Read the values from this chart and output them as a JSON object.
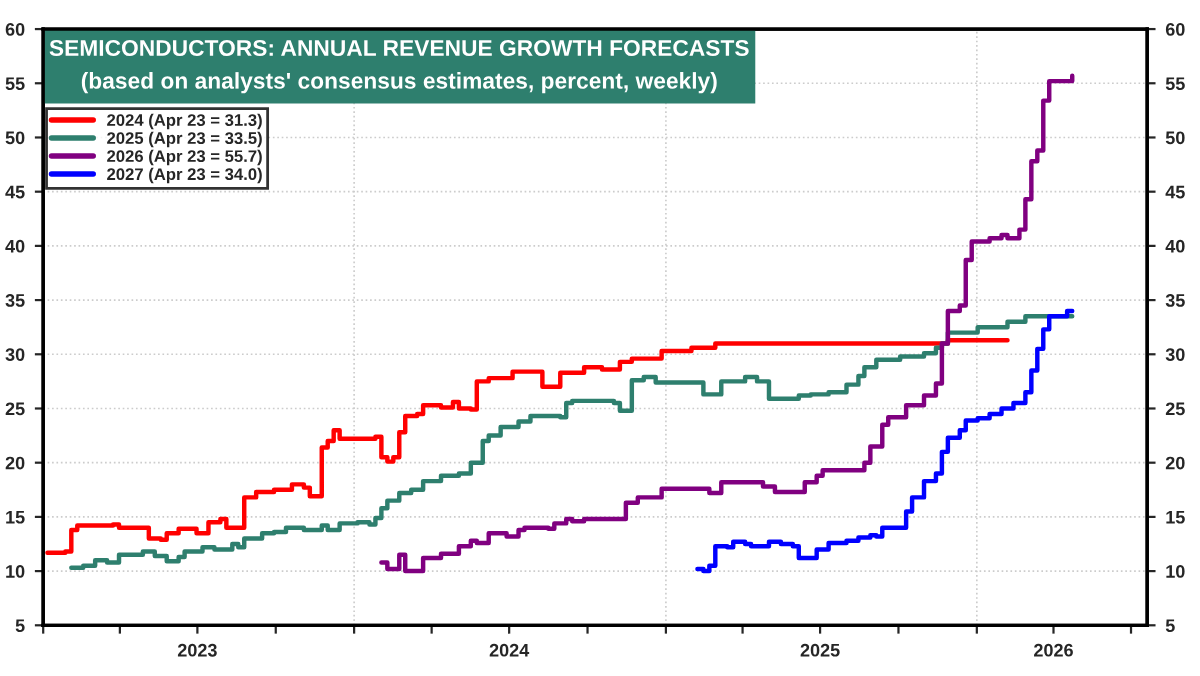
{
  "chart_data": {
    "type": "step",
    "title": "SEMICONDUCTORS: ANNUAL REVENUE GROWTH FORECASTS",
    "subtitle": "(based on analysts' consensus estimates, percent, weekly)",
    "xlim": [
      "2023-01-01",
      "2026-07-20"
    ],
    "xticks": [
      {
        "value": "2023-01-01",
        "label": null
      },
      {
        "value": "2023-04-01",
        "label": null
      },
      {
        "value": "2023-07-01",
        "label": "2023"
      },
      {
        "value": "2023-10-01",
        "label": null
      },
      {
        "value": "2024-01-01",
        "label": null
      },
      {
        "value": "2024-04-01",
        "label": null
      },
      {
        "value": "2024-07-01",
        "label": "2024"
      },
      {
        "value": "2024-10-01",
        "label": null
      },
      {
        "value": "2025-01-01",
        "label": null
      },
      {
        "value": "2025-04-01",
        "label": null
      },
      {
        "value": "2025-07-01",
        "label": "2025"
      },
      {
        "value": "2025-10-01",
        "label": null
      },
      {
        "value": "2026-01-01",
        "label": null
      },
      {
        "value": "2026-04-01",
        "label": "2026"
      },
      {
        "value": "2026-07-01",
        "label": null
      }
    ],
    "ylim": [
      5,
      60
    ],
    "yticks": [
      5,
      10,
      15,
      20,
      25,
      30,
      35,
      40,
      45,
      50,
      55,
      60
    ],
    "y2lim": [
      5,
      60
    ],
    "y2ticks": [
      5,
      10,
      15,
      20,
      25,
      30,
      35,
      40,
      45,
      50,
      55,
      60
    ],
    "grid": true,
    "legend": "top left",
    "line_style": "solid",
    "marker": "none",
    "series": [
      {
        "name": "2024 (Apr 23 = 31.3)",
        "color": "#ff0000",
        "x": [
          "2023-01-06",
          "2023-01-27",
          "2023-02-03",
          "2023-02-10",
          "2023-03-24",
          "2023-03-31",
          "2023-04-28",
          "2023-05-05",
          "2023-05-19",
          "2023-05-26",
          "2023-06-09",
          "2023-06-23",
          "2023-06-30",
          "2023-07-07",
          "2023-07-14",
          "2023-07-28",
          "2023-08-04",
          "2023-08-18",
          "2023-08-25",
          "2023-09-08",
          "2023-09-29",
          "2023-10-20",
          "2023-11-03",
          "2023-11-10",
          "2023-11-17",
          "2023-11-24",
          "2023-12-01",
          "2023-12-08",
          "2023-12-15",
          "2024-01-26",
          "2024-02-02",
          "2024-02-09",
          "2024-02-16",
          "2024-02-23",
          "2024-03-01",
          "2024-03-15",
          "2024-03-22",
          "2024-04-12",
          "2024-04-26",
          "2024-05-03",
          "2024-05-17",
          "2024-05-24",
          "2024-06-07",
          "2024-07-05",
          "2024-08-02",
          "2024-08-09",
          "2024-08-23",
          "2024-08-30",
          "2024-09-27",
          "2024-10-18",
          "2024-11-08",
          "2024-11-22",
          "2024-12-27",
          "2025-01-31",
          "2025-02-28",
          "2025-11-21",
          "2025-11-28",
          "2026-02-06"
        ],
        "values": [
          11.7,
          11.8,
          13.8,
          14.2,
          14.3,
          14.0,
          14.0,
          13.0,
          12.9,
          13.5,
          13.9,
          13.9,
          13.5,
          13.5,
          14.5,
          14.8,
          14.0,
          14.0,
          16.8,
          17.3,
          17.5,
          18.0,
          17.7,
          16.9,
          16.9,
          21.4,
          22.0,
          23.0,
          22.2,
          22.4,
          20.5,
          20.1,
          20.5,
          22.8,
          24.3,
          24.5,
          25.3,
          25.1,
          25.6,
          25.0,
          24.9,
          27.5,
          27.8,
          28.4,
          28.4,
          27.0,
          27.0,
          28.3,
          28.8,
          28.6,
          29.3,
          29.6,
          30.3,
          30.6,
          31.0,
          31.0,
          31.3,
          31.3
        ]
      },
      {
        "name": "2025 (Apr 23 = 33.5)",
        "color": "#2e7f6e",
        "x": [
          "2023-02-03",
          "2023-02-17",
          "2023-03-03",
          "2023-03-17",
          "2023-03-31",
          "2023-04-28",
          "2023-05-12",
          "2023-05-26",
          "2023-06-09",
          "2023-06-16",
          "2023-07-07",
          "2023-07-21",
          "2023-08-11",
          "2023-08-18",
          "2023-08-25",
          "2023-09-15",
          "2023-09-29",
          "2023-10-13",
          "2023-11-03",
          "2023-11-24",
          "2023-12-01",
          "2023-12-15",
          "2024-01-05",
          "2024-01-19",
          "2024-01-26",
          "2024-02-02",
          "2024-02-09",
          "2024-02-23",
          "2024-03-08",
          "2024-03-22",
          "2024-04-12",
          "2024-05-03",
          "2024-05-17",
          "2024-05-31",
          "2024-06-07",
          "2024-06-21",
          "2024-07-12",
          "2024-07-26",
          "2024-08-30",
          "2024-09-06",
          "2024-09-13",
          "2024-11-01",
          "2024-11-08",
          "2024-11-15",
          "2024-11-22",
          "2024-12-06",
          "2024-12-20",
          "2025-02-07",
          "2025-02-14",
          "2025-02-28",
          "2025-03-07",
          "2025-04-04",
          "2025-04-18",
          "2025-05-02",
          "2025-05-23",
          "2025-06-06",
          "2025-06-20",
          "2025-07-11",
          "2025-08-01",
          "2025-08-15",
          "2025-08-22",
          "2025-09-05",
          "2025-10-03",
          "2025-10-31",
          "2025-11-14",
          "2025-11-21",
          "2025-11-28",
          "2026-01-02",
          "2026-02-06",
          "2026-02-27",
          "2026-04-23"
        ],
        "values": [
          10.3,
          10.5,
          11.0,
          10.8,
          11.5,
          11.8,
          11.4,
          10.9,
          11.3,
          11.8,
          12.2,
          12.0,
          12.5,
          12.2,
          13.0,
          13.5,
          13.6,
          14.0,
          13.8,
          14.2,
          13.8,
          14.4,
          14.5,
          14.3,
          14.9,
          15.8,
          16.5,
          17.2,
          17.5,
          18.3,
          18.8,
          19.0,
          20.0,
          22.0,
          22.5,
          23.3,
          23.8,
          24.3,
          24.2,
          25.5,
          25.7,
          25.5,
          24.8,
          24.8,
          27.6,
          27.9,
          27.4,
          27.4,
          26.3,
          26.3,
          27.5,
          27.9,
          27.5,
          25.9,
          25.9,
          26.2,
          26.3,
          26.5,
          27.2,
          28.0,
          28.8,
          29.5,
          29.8,
          30.1,
          30.6,
          31.0,
          32.0,
          32.5,
          33.0,
          33.5,
          33.5
        ]
      },
      {
        "name": "2026 (Apr 23 = 55.7)",
        "color": "#800080",
        "x": [
          "2024-02-02",
          "2024-02-09",
          "2024-02-16",
          "2024-02-23",
          "2024-03-01",
          "2024-03-15",
          "2024-03-22",
          "2024-04-12",
          "2024-04-26",
          "2024-05-03",
          "2024-05-17",
          "2024-05-24",
          "2024-06-07",
          "2024-06-21",
          "2024-06-28",
          "2024-07-12",
          "2024-07-19",
          "2024-08-09",
          "2024-08-16",
          "2024-08-23",
          "2024-09-06",
          "2024-09-13",
          "2024-09-27",
          "2024-11-08",
          "2024-11-15",
          "2024-11-29",
          "2024-12-27",
          "2025-01-31",
          "2025-02-21",
          "2025-03-07",
          "2025-04-04",
          "2025-04-25",
          "2025-05-09",
          "2025-05-30",
          "2025-06-13",
          "2025-06-27",
          "2025-07-04",
          "2025-08-08",
          "2025-08-22",
          "2025-08-29",
          "2025-09-12",
          "2025-09-19",
          "2025-10-10",
          "2025-10-31",
          "2025-11-14",
          "2025-11-21",
          "2025-11-28",
          "2025-12-12",
          "2025-12-19",
          "2025-12-26",
          "2026-01-16",
          "2026-01-30",
          "2026-02-06",
          "2026-02-20",
          "2026-02-27",
          "2026-03-06",
          "2026-03-13",
          "2026-03-20",
          "2026-03-27",
          "2026-04-23"
        ],
        "values": [
          10.8,
          10.2,
          10.2,
          11.5,
          10.0,
          10.0,
          11.2,
          11.6,
          11.6,
          12.3,
          12.8,
          12.6,
          13.5,
          13.5,
          13.2,
          13.8,
          14.0,
          14.0,
          13.9,
          14.4,
          14.8,
          14.6,
          14.8,
          14.8,
          16.3,
          16.8,
          17.6,
          17.6,
          17.2,
          18.2,
          18.2,
          17.8,
          17.3,
          17.3,
          18.2,
          18.8,
          19.3,
          19.3,
          20.0,
          21.5,
          23.5,
          24.2,
          25.3,
          26.2,
          27.3,
          31.0,
          34.0,
          34.5,
          38.7,
          40.4,
          40.7,
          41.0,
          40.7,
          41.5,
          44.3,
          47.8,
          48.8,
          53.4,
          55.2,
          55.7
        ]
      },
      {
        "name": "2027 (Apr 23 = 34.0)",
        "color": "#0000ff",
        "x": [
          "2025-02-07",
          "2025-02-14",
          "2025-02-21",
          "2025-02-28",
          "2025-03-14",
          "2025-03-21",
          "2025-04-04",
          "2025-04-11",
          "2025-04-25",
          "2025-05-02",
          "2025-05-16",
          "2025-05-30",
          "2025-06-06",
          "2025-06-20",
          "2025-06-27",
          "2025-07-11",
          "2025-08-01",
          "2025-08-15",
          "2025-08-29",
          "2025-09-05",
          "2025-09-12",
          "2025-10-03",
          "2025-10-10",
          "2025-10-17",
          "2025-10-31",
          "2025-11-14",
          "2025-11-21",
          "2025-11-28",
          "2025-12-12",
          "2025-12-19",
          "2026-01-02",
          "2026-01-16",
          "2026-01-30",
          "2026-02-13",
          "2026-02-27",
          "2026-03-06",
          "2026-03-13",
          "2026-03-20",
          "2026-03-27",
          "2026-04-10",
          "2026-04-17",
          "2026-04-23"
        ],
        "values": [
          10.2,
          10.0,
          10.5,
          12.3,
          12.2,
          12.7,
          12.5,
          12.3,
          12.3,
          12.7,
          12.5,
          12.3,
          11.2,
          11.2,
          12.0,
          12.6,
          12.8,
          13.1,
          13.3,
          13.2,
          14.0,
          14.0,
          15.5,
          16.8,
          18.3,
          19.0,
          21.0,
          22.3,
          23.0,
          23.9,
          24.1,
          24.5,
          25.0,
          25.5,
          26.5,
          28.5,
          30.5,
          32.3,
          33.5,
          33.5,
          34.0,
          34.0
        ]
      }
    ]
  }
}
